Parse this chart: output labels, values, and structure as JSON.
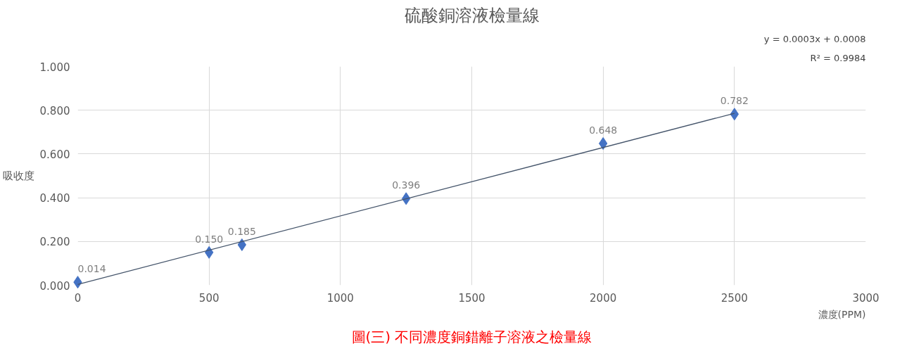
{
  "chart_data": {
    "type": "scatter",
    "title": "硫酸銅溶液檢量線",
    "xlabel": "濃度(PPM)",
    "ylabel": "吸收度",
    "x": [
      0,
      500,
      625,
      1250,
      2000,
      2500
    ],
    "series": [
      {
        "color": "#4472c4",
        "values": [
          0.014,
          0.15,
          0.185,
          0.396,
          0.648,
          0.782
        ],
        "marker": "diamond",
        "value_labels": [
          "0.014",
          "0.150",
          "0.185",
          "0.396",
          "0.648",
          "0.782"
        ]
      },
      {
        "type": "line",
        "color": "#44546a",
        "x": [
          0,
          2500
        ],
        "values": [
          0.004,
          0.786
        ],
        "line_style": "solid"
      }
    ],
    "xlim": [
      0,
      3000
    ],
    "xticks": [
      0,
      500,
      1000,
      1500,
      2000,
      2500,
      3000
    ],
    "ylim": [
      0,
      1
    ],
    "yticks": [
      {
        "value": 0,
        "label": "0.000"
      },
      {
        "value": 0.2,
        "label": "0.200"
      },
      {
        "value": 0.4,
        "label": "0.400"
      },
      {
        "value": 0.6,
        "label": "0.600"
      },
      {
        "value": 0.8,
        "label": "0.800"
      },
      {
        "value": 1,
        "label": "1.000"
      }
    ],
    "grid": true,
    "annotations": [
      "y = 0.0003x + 0.0008",
      "R² = 0.9984",
      "圖(三) 不同濃度銅錯離子溶液之檢量線"
    ]
  }
}
